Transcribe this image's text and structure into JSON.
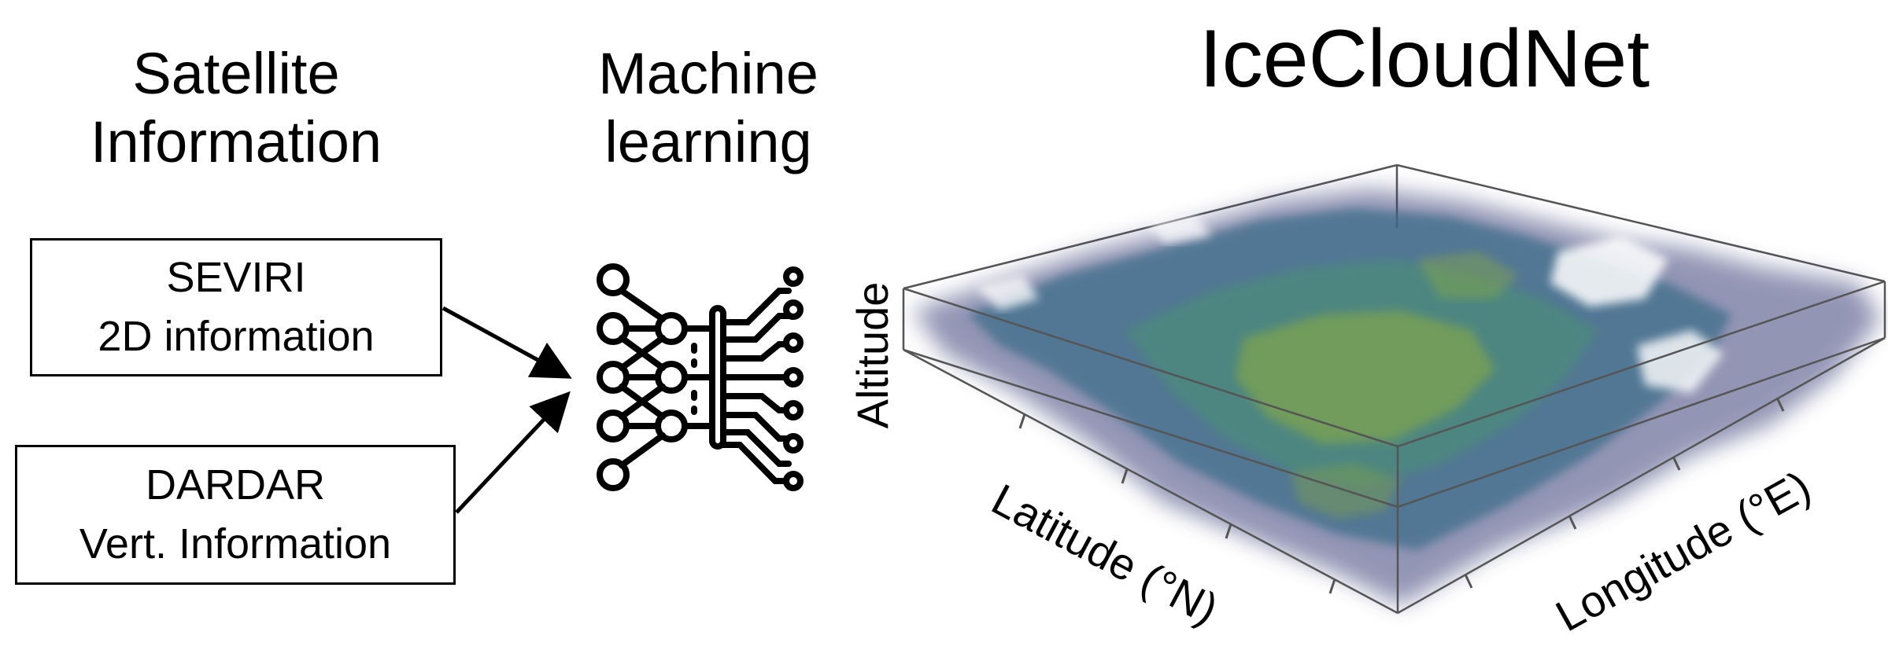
{
  "headings": {
    "satellite": [
      "Satellite",
      "Information"
    ],
    "ml": [
      "Machine",
      "learning"
    ],
    "main": "IceCloudNet"
  },
  "inputs": {
    "seviri": [
      "SEVIRI",
      "2D information"
    ],
    "dardar": [
      "DARDAR",
      "Vert. Information"
    ]
  },
  "icon": "neural-network-chip-icon",
  "output_axes": {
    "vertical": "Altitude",
    "latitude": "Latitude (°N)",
    "longitude": "Longitude (°E)"
  },
  "colors": {
    "cloud_dark": "#3b3f78",
    "cloud_mid": "#3d7a8a",
    "cloud_light": "#8fae3c"
  }
}
